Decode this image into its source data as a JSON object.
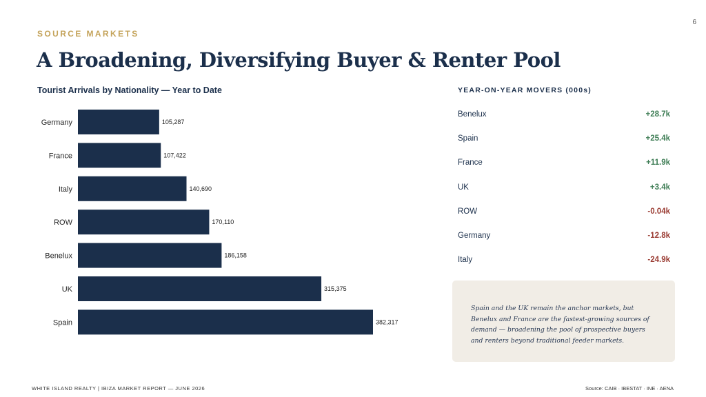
{
  "page_number": "6",
  "eyebrow": "SOURCE MARKETS",
  "title": "A Broadening, Diversifying Buyer & Renter Pool",
  "chart_data": {
    "type": "bar",
    "orientation": "horizontal",
    "title": "Tourist Arrivals by Nationality — Year to Date",
    "categories": [
      "Germany",
      "France",
      "Italy",
      "ROW",
      "Benelux",
      "UK",
      "Spain"
    ],
    "values": [
      105287,
      107422,
      140690,
      170110,
      186158,
      315375,
      382317
    ],
    "value_labels": [
      "105,287",
      "107,422",
      "140,690",
      "170,110",
      "186,158",
      "315,375",
      "382,317"
    ],
    "bar_color": "#1b2f4b",
    "grid": false
  },
  "movers": {
    "title": "YEAR-ON-YEAR MOVERS (000s)",
    "rows": [
      {
        "label": "Benelux",
        "value": "+28.7k",
        "trend": "up"
      },
      {
        "label": "Spain",
        "value": "+25.4k",
        "trend": "up"
      },
      {
        "label": "France",
        "value": "+11.9k",
        "trend": "up"
      },
      {
        "label": "UK",
        "value": "+3.4k",
        "trend": "up"
      },
      {
        "label": "ROW",
        "value": "-0.04k",
        "trend": "down"
      },
      {
        "label": "Germany",
        "value": "-12.8k",
        "trend": "down"
      },
      {
        "label": "Italy",
        "value": "-24.9k",
        "trend": "down"
      }
    ]
  },
  "note": "Spain and the UK remain the anchor markets, but Benelux and France are the fastest-growing sources of demand — broadening the pool of prospective buyers and renters beyond traditional feeder markets.",
  "footer": {
    "left": "WHITE ISLAND REALTY  |  IBIZA MARKET REPORT — JUNE 2026",
    "right": "Source: CAIB · IBESTAT · INE · AENA"
  },
  "colors": {
    "accent_gold": "#c4a35a",
    "navy": "#1b2f4b",
    "positive": "#3e7d55",
    "negative": "#9a3b32",
    "note_bg": "#f1ede6"
  }
}
